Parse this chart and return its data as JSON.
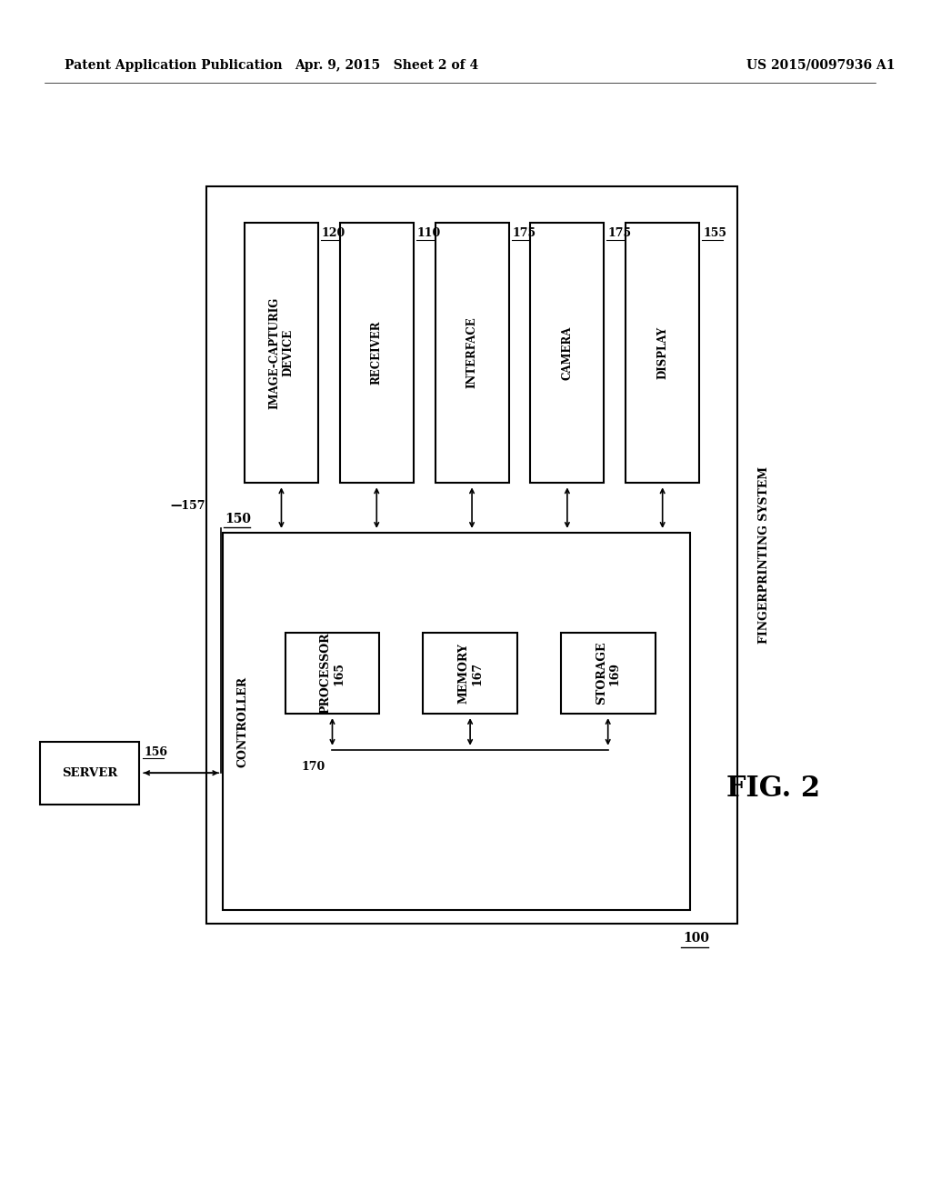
{
  "bg_color": "#ffffff",
  "header_left": "Patent Application Publication",
  "header_mid": "Apr. 9, 2015   Sheet 2 of 4",
  "header_right": "US 2015/0097936 A1",
  "fig_label": "FIG. 2",
  "top_boxes": [
    {
      "label": "IMAGE-CAPTURIG\nDEVICE",
      "ref": "120"
    },
    {
      "label": "RECEIVER",
      "ref": "110"
    },
    {
      "label": "INTERFACE",
      "ref": "175"
    },
    {
      "label": "CAMERA",
      "ref": "175"
    },
    {
      "label": "DISPLAY",
      "ref": "155"
    }
  ],
  "controller_label": "CONTROLLER",
  "controller_ref": "150",
  "inner_boxes": [
    {
      "label": "PROCESSOR\n165"
    },
    {
      "label": "MEMORY\n167"
    },
    {
      "label": "STORAGE\n169"
    }
  ],
  "bus_label": "170",
  "outer_label": "100",
  "side_label": "FINGERPRINTING SYSTEM",
  "server_label": "SERVER",
  "server_ref": "156",
  "link_label": "157"
}
